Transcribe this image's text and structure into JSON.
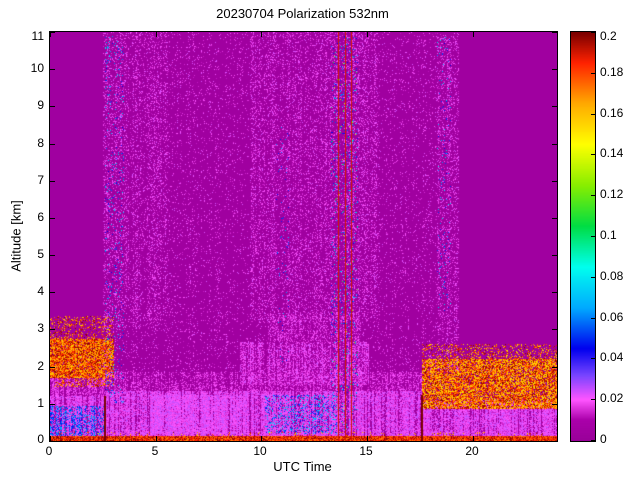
{
  "figure": {
    "title": "20230704 Polarization 532nm",
    "xlabel": "UTC Time",
    "ylabel": "Altitude [km]"
  },
  "chart_data": {
    "type": "heatmap",
    "title": "20230704 Polarization 532nm",
    "xlabel": "UTC Time",
    "ylabel": "Altitude [km]",
    "xlim": [
      0,
      24
    ],
    "ylim": [
      0,
      11
    ],
    "xticks": [
      0,
      5,
      10,
      15,
      20
    ],
    "xtick_labels": [
      "0",
      "5",
      "10",
      "15",
      "20"
    ],
    "yticks": [
      0,
      1,
      2,
      3,
      4,
      5,
      6,
      7,
      8,
      9,
      10,
      11
    ],
    "ytick_labels": [
      "0",
      "1",
      "2",
      "3",
      "4",
      "5",
      "6",
      "7",
      "8",
      "9",
      "10",
      "11"
    ],
    "grid": false,
    "legend": "none",
    "colorbar": {
      "min": 0,
      "max": 0.2,
      "ticks": [
        0,
        0.02,
        0.04,
        0.06,
        0.08,
        0.1,
        0.12,
        0.14,
        0.16,
        0.18,
        0.2
      ],
      "tick_labels": [
        "0",
        "0.02",
        "0.04",
        "0.06",
        "0.08",
        "0.1",
        "0.12",
        "0.14",
        "0.16",
        "0.18",
        "0.2"
      ],
      "position": "right"
    },
    "colormap_stops": [
      [
        0.0,
        "#990099"
      ],
      [
        0.01,
        "#aa00aa"
      ],
      [
        0.02,
        "#ff55ff"
      ],
      [
        0.032,
        "#7744ff"
      ],
      [
        0.045,
        "#0000ee"
      ],
      [
        0.065,
        "#00aaff"
      ],
      [
        0.085,
        "#00ffee"
      ],
      [
        0.105,
        "#00dd44"
      ],
      [
        0.125,
        "#88ee00"
      ],
      [
        0.145,
        "#ffff00"
      ],
      [
        0.165,
        "#ffaa00"
      ],
      [
        0.185,
        "#ff2200"
      ],
      [
        0.2,
        "#7a0000"
      ]
    ],
    "background_value": 0.004,
    "seed": 7,
    "regions": [
      {
        "x": [
          0,
          24
        ],
        "y": [
          0,
          0.14
        ],
        "density": 1.0,
        "v": [
          0.17,
          0.2
        ]
      },
      {
        "x": [
          0,
          24
        ],
        "y": [
          0.14,
          0.24
        ],
        "density": 0.45,
        "v": [
          0.15,
          0.2
        ]
      },
      {
        "x": [
          0,
          2.6
        ],
        "y": [
          0.14,
          1.2
        ],
        "density": 0.95,
        "v": [
          0.013,
          0.026
        ],
        "streaky": true
      },
      {
        "x": [
          0,
          2.6
        ],
        "y": [
          0.14,
          0.95
        ],
        "density": 0.4,
        "v": [
          0.04,
          0.07
        ],
        "streaky": true
      },
      {
        "x": [
          0,
          2.6
        ],
        "y": [
          1.2,
          1.7
        ],
        "density": 0.55,
        "v": [
          0.012,
          0.022
        ],
        "streaky": true
      },
      {
        "x": [
          0,
          3.05
        ],
        "y": [
          1.7,
          2.75
        ],
        "density": 0.95,
        "v": [
          0.155,
          0.2
        ]
      },
      {
        "x": [
          0,
          3.05
        ],
        "y": [
          2.75,
          3.35
        ],
        "density": 0.3,
        "v": [
          0.155,
          0.2
        ]
      },
      {
        "x": [
          0.2,
          3.05
        ],
        "y": [
          1.45,
          1.75
        ],
        "density": 0.35,
        "v": [
          0.155,
          0.2
        ]
      },
      {
        "x": [
          2.6,
          17.6
        ],
        "y": [
          0.14,
          1.35
        ],
        "density": 0.9,
        "v": [
          0.013,
          0.026
        ],
        "streaky": true
      },
      {
        "x": [
          2.6,
          17.6
        ],
        "y": [
          1.35,
          1.85
        ],
        "density": 0.45,
        "v": [
          0.01,
          0.022
        ],
        "streaky": true
      },
      {
        "x": [
          4.8,
          9.3
        ],
        "y": [
          0.18,
          1.25
        ],
        "density": 0.75,
        "v": [
          0.016,
          0.026
        ],
        "streaky": true
      },
      {
        "x": [
          9.0,
          15.1
        ],
        "y": [
          1.5,
          2.65
        ],
        "density": 0.55,
        "v": [
          0.01,
          0.024
        ],
        "streaky": true
      },
      {
        "x": [
          10.3,
          14.7
        ],
        "y": [
          2.65,
          3.45
        ],
        "density": 0.35,
        "v": [
          0.01,
          0.022
        ],
        "streaky": true
      },
      {
        "x": [
          10.2,
          13.6
        ],
        "y": [
          0.2,
          1.25
        ],
        "density": 0.22,
        "v": [
          0.04,
          0.08
        ]
      },
      {
        "x": [
          17.6,
          24
        ],
        "y": [
          0.14,
          1.1
        ],
        "density": 0.9,
        "v": [
          0.013,
          0.026
        ],
        "streaky": true
      },
      {
        "x": [
          17.6,
          24
        ],
        "y": [
          0.85,
          2.2
        ],
        "density": 0.88,
        "v": [
          0.15,
          0.2
        ]
      },
      {
        "x": [
          17.6,
          24
        ],
        "y": [
          2.2,
          2.6
        ],
        "density": 0.3,
        "v": [
          0.15,
          0.2
        ]
      },
      {
        "x": [
          2.5,
          19.35
        ],
        "y": [
          1.85,
          11
        ],
        "density": 0.09,
        "v": [
          0.012,
          0.024
        ],
        "streaky": true
      },
      {
        "x": [
          2.5,
          5.6
        ],
        "y": [
          3.0,
          11
        ],
        "density": 0.14,
        "v": [
          0.012,
          0.024
        ],
        "streaky": true
      },
      {
        "x": [
          9.5,
          15.5
        ],
        "y": [
          3.2,
          11
        ],
        "density": 0.16,
        "v": [
          0.012,
          0.024
        ],
        "streaky": true
      },
      {
        "x": [
          18.3,
          19.35
        ],
        "y": [
          2.6,
          10.9
        ],
        "density": 0.15,
        "v": [
          0.012,
          0.024
        ],
        "streaky": true
      },
      {
        "x": [
          2.6,
          3.5
        ],
        "y": [
          1.0,
          10.9
        ],
        "density": 0.05,
        "v": [
          0.04,
          0.08
        ]
      },
      {
        "x": [
          13.3,
          14.6
        ],
        "y": [
          0.3,
          10.9
        ],
        "density": 0.05,
        "v": [
          0.04,
          0.08
        ]
      },
      {
        "x": [
          13.3,
          14.6
        ],
        "y": [
          0.3,
          10.5
        ],
        "density": 0.012,
        "v": [
          0.08,
          0.14
        ]
      },
      {
        "x": [
          18.3,
          19.0
        ],
        "y": [
          3.5,
          10.9
        ],
        "density": 0.04,
        "v": [
          0.04,
          0.08
        ]
      },
      {
        "x": [
          10.7,
          11.3
        ],
        "y": [
          2.0,
          8.5
        ],
        "density": 0.025,
        "v": [
          0.04,
          0.07
        ]
      }
    ],
    "vlines": [
      {
        "x": 2.55,
        "y": [
          0,
          1.2
        ],
        "w": 2,
        "v": 0.2
      },
      {
        "x": 17.55,
        "y": [
          0,
          1.25
        ],
        "w": 2,
        "v": 0.2
      },
      {
        "x": 13.62,
        "y": [
          0,
          11
        ],
        "w": 1,
        "v": 0.19
      },
      {
        "x": 13.95,
        "y": [
          0,
          11
        ],
        "w": 1,
        "v": 0.19
      },
      {
        "x": 14.25,
        "y": [
          0,
          11
        ],
        "w": 1,
        "v": 0.19
      }
    ]
  }
}
